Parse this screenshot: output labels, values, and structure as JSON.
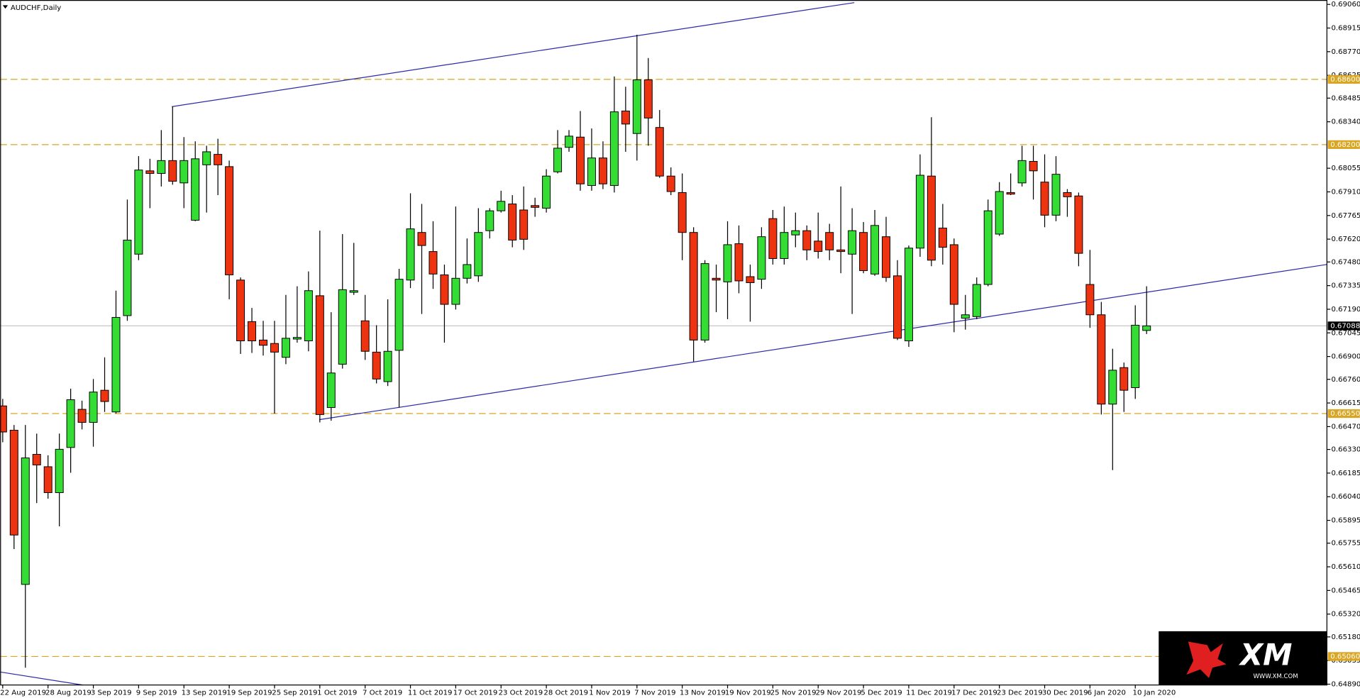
{
  "chart_data": {
    "type": "candlestick",
    "title": "AUDCHF,Daily",
    "categories": [
      "22 Aug 2019",
      null,
      null,
      null,
      "28 Aug 2019",
      null,
      null,
      null,
      "3 Sep 2019",
      null,
      null,
      null,
      "9 Sep 2019",
      null,
      null,
      null,
      "13 Sep 2019",
      null,
      null,
      null,
      "19 Sep 2019",
      null,
      null,
      null,
      "25 Sep 2019",
      null,
      null,
      null,
      "1 Oct 2019",
      null,
      null,
      null,
      "7 Oct 2019",
      null,
      null,
      null,
      "11 Oct 2019",
      null,
      null,
      null,
      "17 Oct 2019",
      null,
      null,
      null,
      "23 Oct 2019",
      null,
      null,
      null,
      "28 Oct 2019",
      null,
      null,
      null,
      "1 Nov 2019",
      null,
      null,
      null,
      "7 Nov 2019",
      null,
      null,
      null,
      "13 Nov 2019",
      null,
      null,
      null,
      "19 Nov 2019",
      null,
      null,
      null,
      "25 Nov 2019",
      null,
      null,
      null,
      "29 Nov 2019",
      null,
      null,
      null,
      "5 Dec 2019",
      null,
      null,
      null,
      "11 Dec 2019",
      null,
      null,
      null,
      "17 Dec 2019",
      null,
      null,
      null,
      "23 Dec 2019",
      null,
      null,
      null,
      "30 Dec 2019",
      null,
      null,
      null,
      "6 Jan 2020",
      null,
      null,
      null,
      "10 Jan 2020",
      null
    ],
    "open": [
      0.66597,
      0.66448,
      0.65502,
      0.663,
      0.66224,
      0.66065,
      0.66342,
      0.66576,
      0.66496,
      0.66693,
      0.6656,
      0.67151,
      0.67528,
      0.68039,
      0.68023,
      0.68102,
      0.67965,
      0.67736,
      0.68076,
      0.6814,
      0.68065,
      0.67369,
      0.67114,
      0.67001,
      0.6698,
      0.66895,
      0.67007,
      0.66996,
      0.67273,
      0.66587,
      0.66853,
      0.67294,
      0.67119,
      0.66927,
      0.66746,
      0.66938,
      0.67369,
      0.67661,
      0.67544,
      0.67401,
      0.6722,
      0.6738,
      0.67395,
      0.67672,
      0.67794,
      0.67836,
      0.67799,
      0.67826,
      0.6781,
      0.68033,
      0.68183,
      0.68246,
      0.67949,
      0.68118,
      0.67949,
      0.68406,
      0.68268,
      0.68597,
      0.68305,
      0.68007,
      0.67906,
      0.67661,
      0.67001,
      0.6738,
      0.67358,
      0.67592,
      0.6739,
      0.67374,
      0.67746,
      0.67501,
      0.67646,
      0.67672,
      0.67608,
      0.67661,
      0.67554,
      0.67528,
      0.67661,
      0.67406,
      0.67635,
      0.67395,
      0.66996,
      0.67565,
      0.68007,
      0.67688,
      0.67586,
      0.67135,
      0.67145,
      0.67342,
      0.67651,
      0.67906,
      0.67965,
      0.68097,
      0.6797,
      0.67767,
      0.67906,
      0.67885,
      0.67342,
      0.67156,
      0.66608,
      0.66832,
      0.66709,
      0.6706
    ],
    "high": [
      0.6664,
      0.6648,
      0.6648,
      0.66427,
      0.66294,
      0.66427,
      0.66703,
      0.66629,
      0.66762,
      0.66895,
      0.67304,
      0.67863,
      0.68129,
      0.68113,
      0.68289,
      0.68433,
      0.68246,
      0.6822,
      0.68193,
      0.68236,
      0.68102,
      0.67385,
      0.67198,
      0.67119,
      0.67119,
      0.67278,
      0.67331,
      0.67422,
      0.67672,
      0.67172,
      0.67651,
      0.67597,
      0.67278,
      0.67092,
      0.67251,
      0.67438,
      0.67901,
      0.67836,
      0.6773,
      0.67464,
      0.6782,
      0.67624,
      0.6781,
      0.6781,
      0.67917,
      0.6789,
      0.67943,
      0.67874,
      0.68049,
      0.68289,
      0.68289,
      0.68406,
      0.68299,
      0.6822,
      0.68618,
      0.68555,
      0.68874,
      0.68731,
      0.68412,
      0.6806,
      0.68023,
      0.67693,
      0.67491,
      0.67464,
      0.6773,
      0.67704,
      0.67464,
      0.67693,
      0.67799,
      0.6782,
      0.67783,
      0.67704,
      0.67783,
      0.67714,
      0.67943,
      0.6781,
      0.67725,
      0.67799,
      0.67757,
      0.67491,
      0.67581,
      0.6814,
      0.68368,
      0.67836,
      0.67624,
      0.67278,
      0.67385,
      0.67863,
      0.6797,
      0.68023,
      0.68193,
      0.68193,
      0.6814,
      0.68129,
      0.67927,
      0.67906,
      0.67554,
      0.67235,
      0.66948,
      0.66863,
      0.67214,
      0.67331
    ],
    "low": [
      0.66374,
      0.65719,
      0.64991,
      0.66001,
      0.66028,
      0.65858,
      0.66187,
      0.66453,
      0.66347,
      0.6656,
      0.6655,
      0.67119,
      0.67491,
      0.6781,
      0.67943,
      0.67954,
      0.6781,
      0.6773,
      0.67783,
      0.6789,
      0.67251,
      0.66916,
      0.66922,
      0.66906,
      0.6655,
      0.66853,
      0.66985,
      0.66932,
      0.66496,
      0.66506,
      0.66826,
      0.67278,
      0.66879,
      0.66735,
      0.66719,
      0.66587,
      0.6732,
      0.67161,
      0.67315,
      0.66985,
      0.67188,
      0.67348,
      0.67358,
      0.67624,
      0.67783,
      0.6757,
      0.67554,
      0.67757,
      0.67783,
      0.68023,
      0.68156,
      0.67917,
      0.67917,
      0.67927,
      0.67906,
      0.68156,
      0.68102,
      0.68193,
      0.67996,
      0.6789,
      0.67491,
      0.66869,
      0.66985,
      0.67172,
      0.67129,
      0.67288,
      0.67114,
      0.67315,
      0.67464,
      0.67464,
      0.6757,
      0.67491,
      0.67501,
      0.67491,
      0.67411,
      0.67161,
      0.67411,
      0.67395,
      0.67358,
      0.67001,
      0.66959,
      0.67512,
      0.67454,
      0.67464,
      0.67049,
      0.67065,
      0.67129,
      0.67331,
      0.6764,
      0.6789,
      0.67943,
      0.67863,
      0.67693,
      0.6773,
      0.67757,
      0.67454,
      0.67076,
      0.66544,
      0.66203,
      0.6656,
      0.6664,
      0.67038
    ],
    "close": [
      0.66437,
      0.65805,
      0.66278,
      0.66235,
      0.66065,
      0.66331,
      0.66635,
      0.66496,
      0.66682,
      0.66624,
      0.6714,
      0.67614,
      0.68044,
      0.68023,
      0.68102,
      0.67975,
      0.68102,
      0.68113,
      0.68156,
      0.68076,
      0.67401,
      0.66996,
      0.66996,
      0.66969,
      0.66927,
      0.67012,
      0.67017,
      0.67304,
      0.66544,
      0.66799,
      0.6731,
      0.67304,
      0.66932,
      0.66762,
      0.66932,
      0.67374,
      0.67683,
      0.67581,
      0.67406,
      0.6722,
      0.6738,
      0.67464,
      0.67661,
      0.67794,
      0.67852,
      0.67614,
      0.67619,
      0.67815,
      0.68007,
      0.68178,
      0.68252,
      0.67959,
      0.68118,
      0.67959,
      0.68401,
      0.68326,
      0.68597,
      0.68363,
      0.68007,
      0.67912,
      0.67661,
      0.67001,
      0.6747,
      0.67369,
      0.67586,
      0.67364,
      0.67353,
      0.67635,
      0.67501,
      0.67661,
      0.67672,
      0.67554,
      0.67544,
      0.67554,
      0.67544,
      0.67672,
      0.67427,
      0.67704,
      0.67385,
      0.67012,
      0.67565,
      0.68012,
      0.67491,
      0.6757,
      0.6722,
      0.67156,
      0.67342,
      0.67794,
      0.67912,
      0.67896,
      0.68102,
      0.68039,
      0.67767,
      0.68018,
      0.6788,
      0.67533,
      0.67156,
      0.66608,
      0.66816,
      0.66693,
      0.67092,
      0.67088
    ],
    "up_color": "#33dd33",
    "down_color": "#ee3311",
    "ylim": [
      0.64885,
      0.69087
    ],
    "yticks": [
      {
        "value": 0.6906,
        "label": "0.69060"
      },
      0.68915,
      {
        "value": 0.6877,
        "label": "0.68770"
      },
      0.68625,
      0.68485,
      {
        "value": 0.6834,
        "label": "0.68340"
      },
      0.68055,
      {
        "value": 0.6791,
        "label": "0.67910"
      },
      0.67765,
      {
        "value": 0.6762,
        "label": "0.67620"
      },
      {
        "value": 0.6748,
        "label": "0.67480"
      },
      0.67335,
      {
        "value": 0.6719,
        "label": "0.67190"
      },
      0.67045,
      {
        "value": 0.669,
        "label": "0.66900"
      },
      {
        "value": 0.6676,
        "label": "0.66760"
      },
      0.66615,
      {
        "value": 0.6647,
        "label": "0.66470"
      },
      {
        "value": 0.6633,
        "label": "0.66330"
      },
      0.66185,
      {
        "value": 0.6604,
        "label": "0.66040"
      },
      0.65895,
      0.65755,
      {
        "value": 0.6561,
        "label": "0.65610"
      },
      0.65465,
      {
        "value": 0.6532,
        "label": "0.65320"
      },
      {
        "value": 0.6518,
        "label": "0.65180"
      },
      0.65035,
      {
        "value": 0.6489,
        "label": "0.64890"
      }
    ],
    "levels": [
      {
        "value": 0.686,
        "label": "0.68600"
      },
      {
        "value": 0.682,
        "label": "0.68200"
      },
      {
        "value": 0.6655,
        "label": "0.66550"
      },
      {
        "value": 0.6506,
        "label": "0.65060"
      }
    ],
    "level_color": "#daa520",
    "last_price": {
      "value": 0.67088,
      "label": "0.67088"
    },
    "grid": false
  },
  "logo": {
    "text": "XM",
    "url": "WWW.XM.COM"
  }
}
